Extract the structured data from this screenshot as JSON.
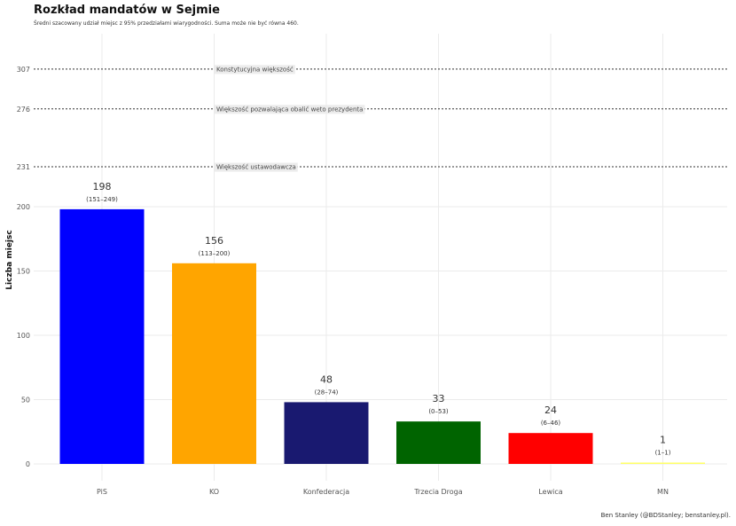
{
  "chart_data": {
    "type": "bar",
    "title": "Rozkład mandatów w Sejmie",
    "subtitle": "Średni szacowany udział miejsc z 95% przedziałami wiarygodności. Suma może nie być równa 460.",
    "ylabel": "Liczba miejsc",
    "xlabel": "",
    "caption": "Ben Stanley (@BDStanley; benstanley.pl).",
    "categories": [
      "PiS",
      "KO",
      "Konfederacja",
      "Trzecia Droga",
      "Lewica",
      "MN"
    ],
    "values": [
      198,
      156,
      48,
      33,
      24,
      1
    ],
    "intervals": [
      "(151–249)",
      "(113–200)",
      "(28–74)",
      "(0–53)",
      "(6–46)",
      "(1–1)"
    ],
    "colors": [
      "#0000ff",
      "#ffa500",
      "#191970",
      "#006400",
      "#ff0000",
      "#ffff66"
    ],
    "yticks": [
      0,
      50,
      100,
      150,
      200
    ],
    "ylim": [
      0,
      325
    ],
    "reference_lines": [
      {
        "value": 307,
        "tick": "307",
        "label": "Konstytucyjna większość"
      },
      {
        "value": 276,
        "tick": "276",
        "label": "Większość pozwalająca obalić weto prezydenta"
      },
      {
        "value": 231,
        "tick": "231",
        "label": "Większość ustawodawcza"
      }
    ],
    "grid": true,
    "legend": "none"
  }
}
